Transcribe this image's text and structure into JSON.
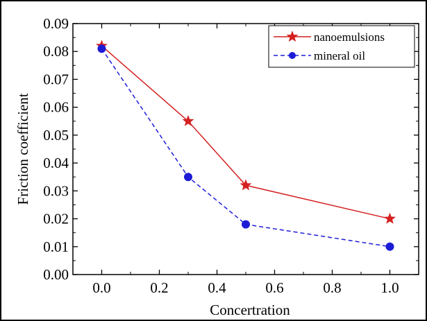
{
  "chart_data": {
    "type": "line",
    "title": "",
    "xlabel": "Concertration",
    "ylabel": "Friction coefficient",
    "x": [
      0.0,
      0.3,
      0.5,
      1.0
    ],
    "xlim": [
      -0.1,
      1.1
    ],
    "ylim": [
      0.0,
      0.09
    ],
    "xticks": [
      0.0,
      0.2,
      0.4,
      0.6,
      0.8,
      1.0
    ],
    "xtick_labels": [
      "0.0",
      "0.2",
      "0.4",
      "0.6",
      "0.8",
      "1.0"
    ],
    "yticks": [
      0.0,
      0.01,
      0.02,
      0.03,
      0.04,
      0.05,
      0.06,
      0.07,
      0.08,
      0.09
    ],
    "ytick_labels": [
      "0.00",
      "0.01",
      "0.02",
      "0.03",
      "0.04",
      "0.05",
      "0.06",
      "0.07",
      "0.08",
      "0.09"
    ],
    "grid": false,
    "legend_position": "top-right",
    "series": [
      {
        "name": "nanoemulsions",
        "values": [
          0.082,
          0.055,
          0.032,
          0.02
        ],
        "color": "#d42020",
        "line_style": "solid",
        "marker": "star"
      },
      {
        "name": "mineral oil",
        "values": [
          0.081,
          0.035,
          0.018,
          0.01
        ],
        "color": "#1c1cd6",
        "line_style": "dashed",
        "marker": "circle"
      }
    ]
  }
}
